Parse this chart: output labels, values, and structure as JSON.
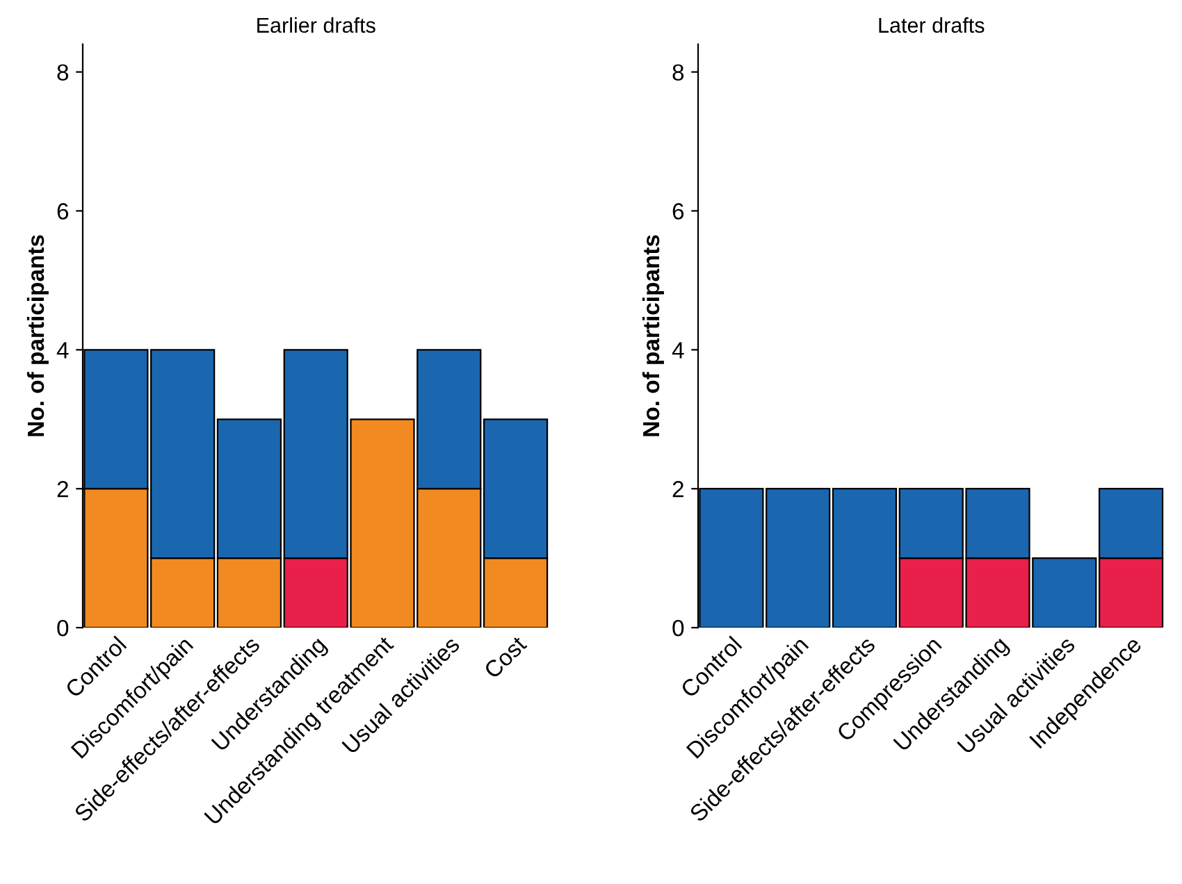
{
  "chart_data": [
    {
      "type": "bar",
      "stacked": true,
      "title": "Earlier drafts",
      "ylabel": "No. of participants",
      "categories": [
        "Control",
        "Discomfort/pain",
        "Side-effects/after-effects",
        "Understanding",
        "Understanding treatment",
        "Usual activities",
        "Cost"
      ],
      "ylim": [
        0,
        8.4
      ],
      "yticks": [
        0,
        2,
        4,
        6,
        8
      ],
      "grid": false,
      "legend": false,
      "series": [
        {
          "colors": [
            "#f28a22",
            "#f28a22",
            "#f28a22",
            "#e8204a",
            "#f28a22",
            "#f28a22",
            "#f28a22"
          ],
          "values": [
            2,
            1,
            1,
            1,
            3,
            2,
            1
          ]
        },
        {
          "color": "#1a67b0",
          "values": [
            2,
            3,
            2,
            3,
            null,
            2,
            2
          ]
        }
      ]
    },
    {
      "type": "bar",
      "stacked": true,
      "title": "Later drafts",
      "ylabel": "No. of participants",
      "categories": [
        "Control",
        "Discomfort/pain",
        "Side-effects/after-effects",
        "Compression",
        "Understanding",
        "Usual activities",
        "Independence"
      ],
      "ylim": [
        0,
        8.4
      ],
      "yticks": [
        0,
        2,
        4,
        6,
        8
      ],
      "grid": false,
      "legend": false,
      "series": [
        {
          "colors": [
            "#e8204a",
            "#e8204a",
            "#e8204a",
            "#e8204a",
            "#e8204a",
            "#e8204a",
            "#e8204a"
          ],
          "values": [
            null,
            null,
            null,
            1,
            1,
            null,
            1
          ]
        },
        {
          "color": "#1a67b0",
          "values": [
            2,
            2,
            2,
            1,
            1,
            1,
            1
          ]
        }
      ]
    }
  ]
}
